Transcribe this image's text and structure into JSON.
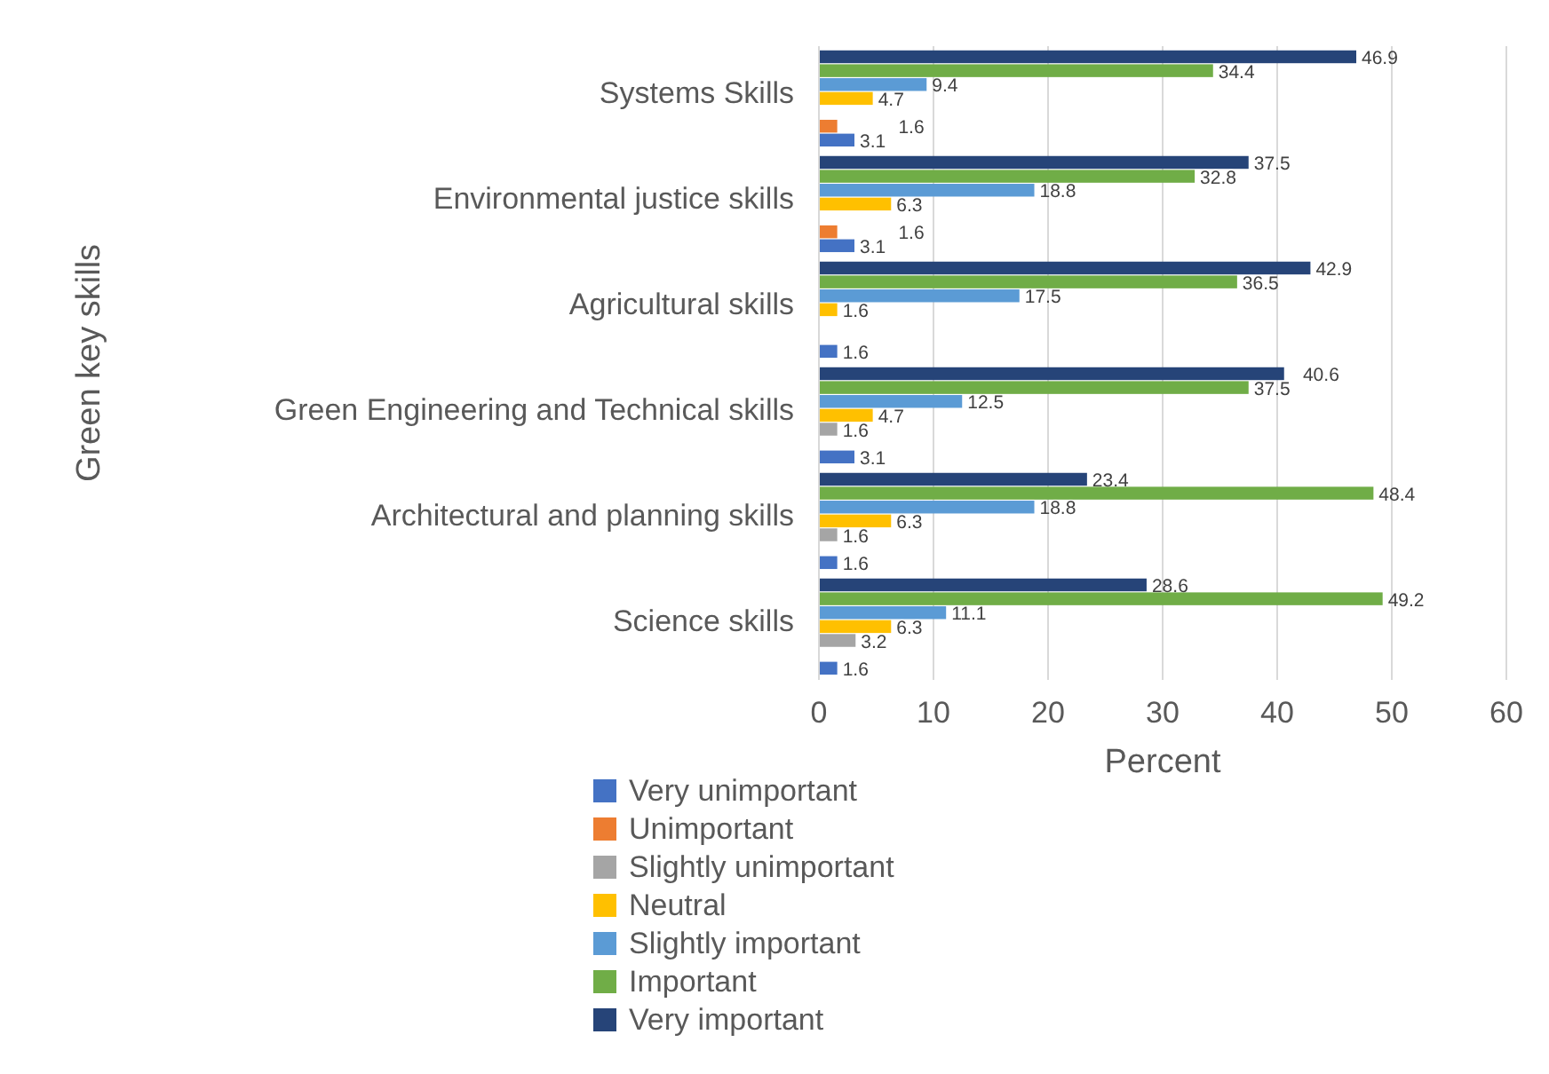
{
  "chart_data": {
    "type": "bar",
    "orientation": "horizontal",
    "xlabel": "Percent",
    "ylabel": "Green key skills",
    "categories": [
      "Systems Skills",
      "Environmental justice skills",
      "Agricultural skills",
      "Green Engineering and Technical skills",
      "Architectural and planning skills",
      "Science skills"
    ],
    "series": [
      {
        "name": "Very unimportant",
        "color": "#4472c4",
        "values": [
          3.1,
          3.1,
          1.6,
          3.1,
          1.6,
          1.6
        ]
      },
      {
        "name": "Unimportant",
        "color": "#ed7d31",
        "values": [
          1.6,
          1.6,
          null,
          null,
          null,
          null
        ]
      },
      {
        "name": "Slightly unimportant",
        "color": "#a5a5a5",
        "values": [
          null,
          null,
          null,
          1.6,
          1.6,
          3.2
        ]
      },
      {
        "name": "Neutral",
        "color": "#ffc000",
        "values": [
          4.7,
          6.3,
          1.6,
          4.7,
          6.3,
          6.3
        ]
      },
      {
        "name": "Slightly important",
        "color": "#5b9bd5",
        "values": [
          9.4,
          18.8,
          17.5,
          12.5,
          18.8,
          11.1
        ]
      },
      {
        "name": "Important",
        "color": "#70ad47",
        "values": [
          34.4,
          32.8,
          36.5,
          37.5,
          48.4,
          49.2
        ]
      },
      {
        "name": "Very important",
        "color": "#264478",
        "values": [
          46.9,
          37.5,
          42.9,
          40.6,
          23.4,
          28.6
        ]
      }
    ],
    "xlim": [
      0,
      60
    ],
    "xticks": [
      0,
      10,
      20,
      30,
      40,
      50,
      60
    ],
    "grid": "x",
    "legend": "bottom",
    "data_labels": true
  }
}
